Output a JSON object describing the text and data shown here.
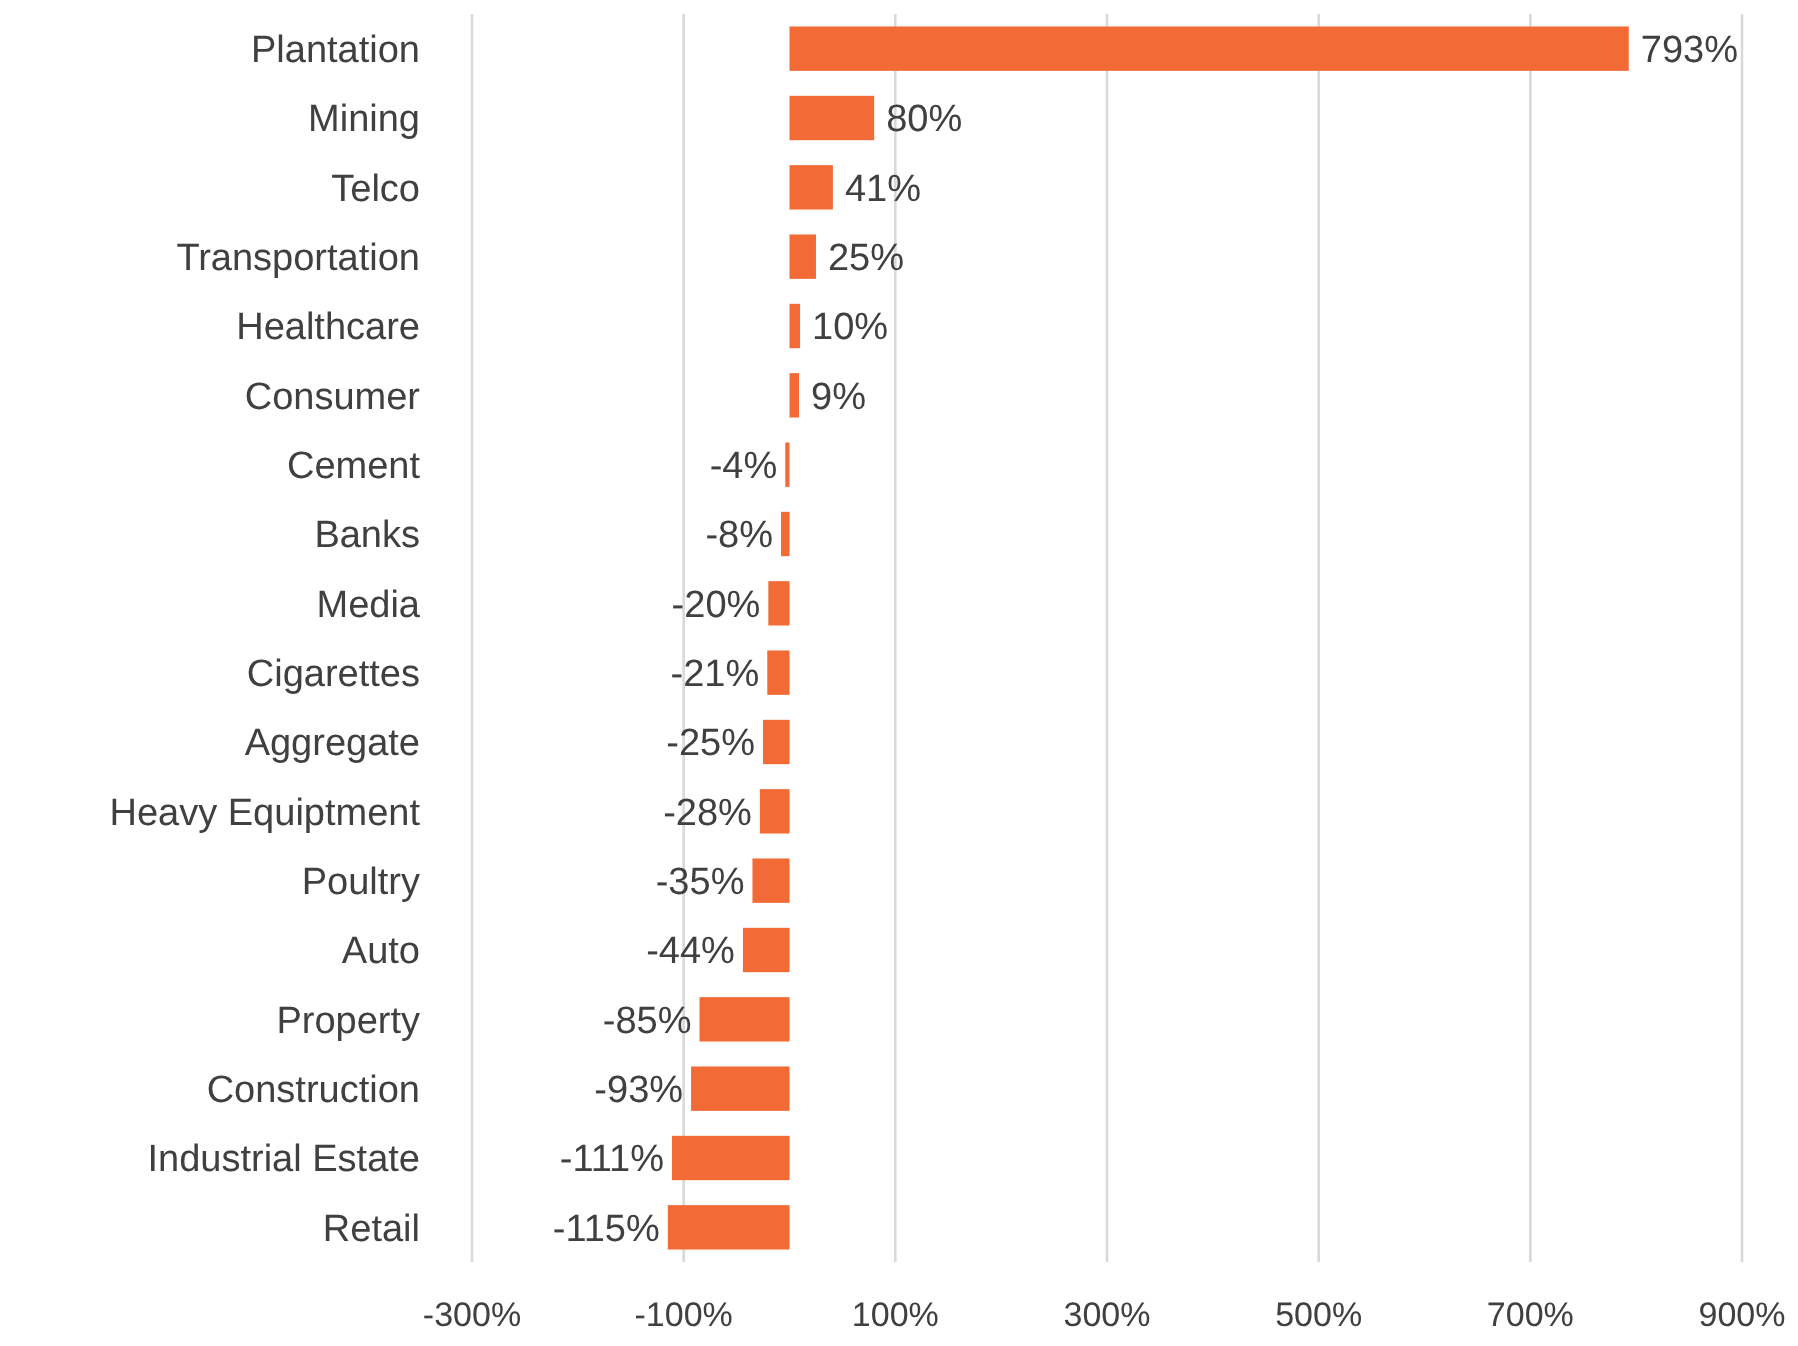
{
  "chart_data": {
    "type": "bar",
    "orientation": "horizontal",
    "categories": [
      "Plantation",
      "Mining",
      "Telco",
      "Transportation",
      "Healthcare",
      "Consumer",
      "Cement",
      "Banks",
      "Media",
      "Cigarettes",
      "Aggregate",
      "Heavy Equiptment",
      "Poultry",
      "Auto",
      "Property",
      "Construction",
      "Industrial Estate",
      "Retail"
    ],
    "values": [
      793,
      80,
      41,
      25,
      10,
      9,
      -4,
      -8,
      -20,
      -21,
      -25,
      -28,
      -35,
      -44,
      -85,
      -93,
      -111,
      -115
    ],
    "value_labels": [
      "793%",
      "80%",
      "41%",
      "25%",
      "10%",
      "9%",
      "-4%",
      "-8%",
      "-20%",
      "-21%",
      "-25%",
      "-28%",
      "-35%",
      "-44%",
      "-85%",
      "-93%",
      "-111%",
      "-115%"
    ],
    "color": "#f26a35",
    "xlim": [
      -300,
      900
    ],
    "xticks": [
      {
        "value": -300,
        "label": "-300%"
      },
      {
        "value": -100,
        "label": "-100%"
      },
      {
        "value": 100,
        "label": "100%"
      },
      {
        "value": 300,
        "label": "300%"
      },
      {
        "value": 500,
        "label": "500%"
      },
      {
        "value": 700,
        "label": "700%"
      },
      {
        "value": 900,
        "label": "900%"
      }
    ],
    "grid": "x"
  }
}
